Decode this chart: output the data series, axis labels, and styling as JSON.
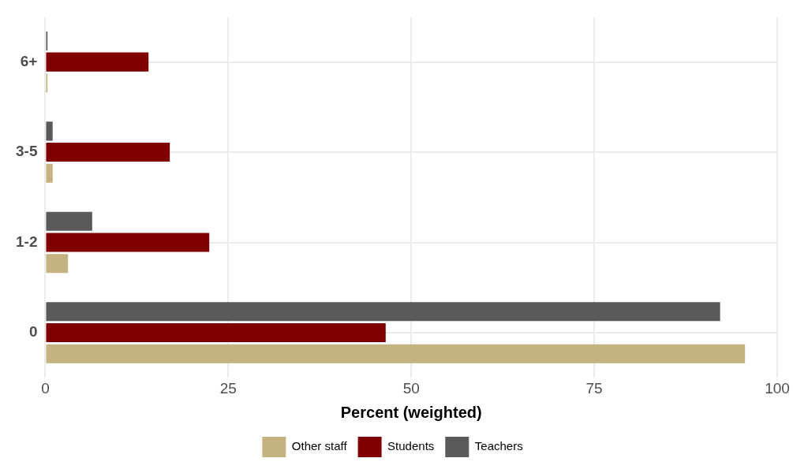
{
  "chart_data": {
    "type": "bar",
    "orientation": "horizontal",
    "xlabel": "Percent (weighted)",
    "categories": [
      "6+",
      "3-5",
      "1-2",
      "0"
    ],
    "series": [
      {
        "name": "Other staff",
        "color": "#c4b280",
        "values": [
          0.3,
          1.0,
          3.1,
          95.6
        ]
      },
      {
        "name": "Students",
        "color": "#800000",
        "values": [
          14.1,
          17.0,
          22.4,
          46.5
        ]
      },
      {
        "name": "Teachers",
        "color": "#5a5a5a",
        "values": [
          0.3,
          1.0,
          6.4,
          92.2
        ]
      }
    ],
    "xlim": [
      0,
      100
    ],
    "xticks": [
      0,
      25,
      50,
      75,
      100
    ],
    "grid": true,
    "legend": "bottom"
  }
}
